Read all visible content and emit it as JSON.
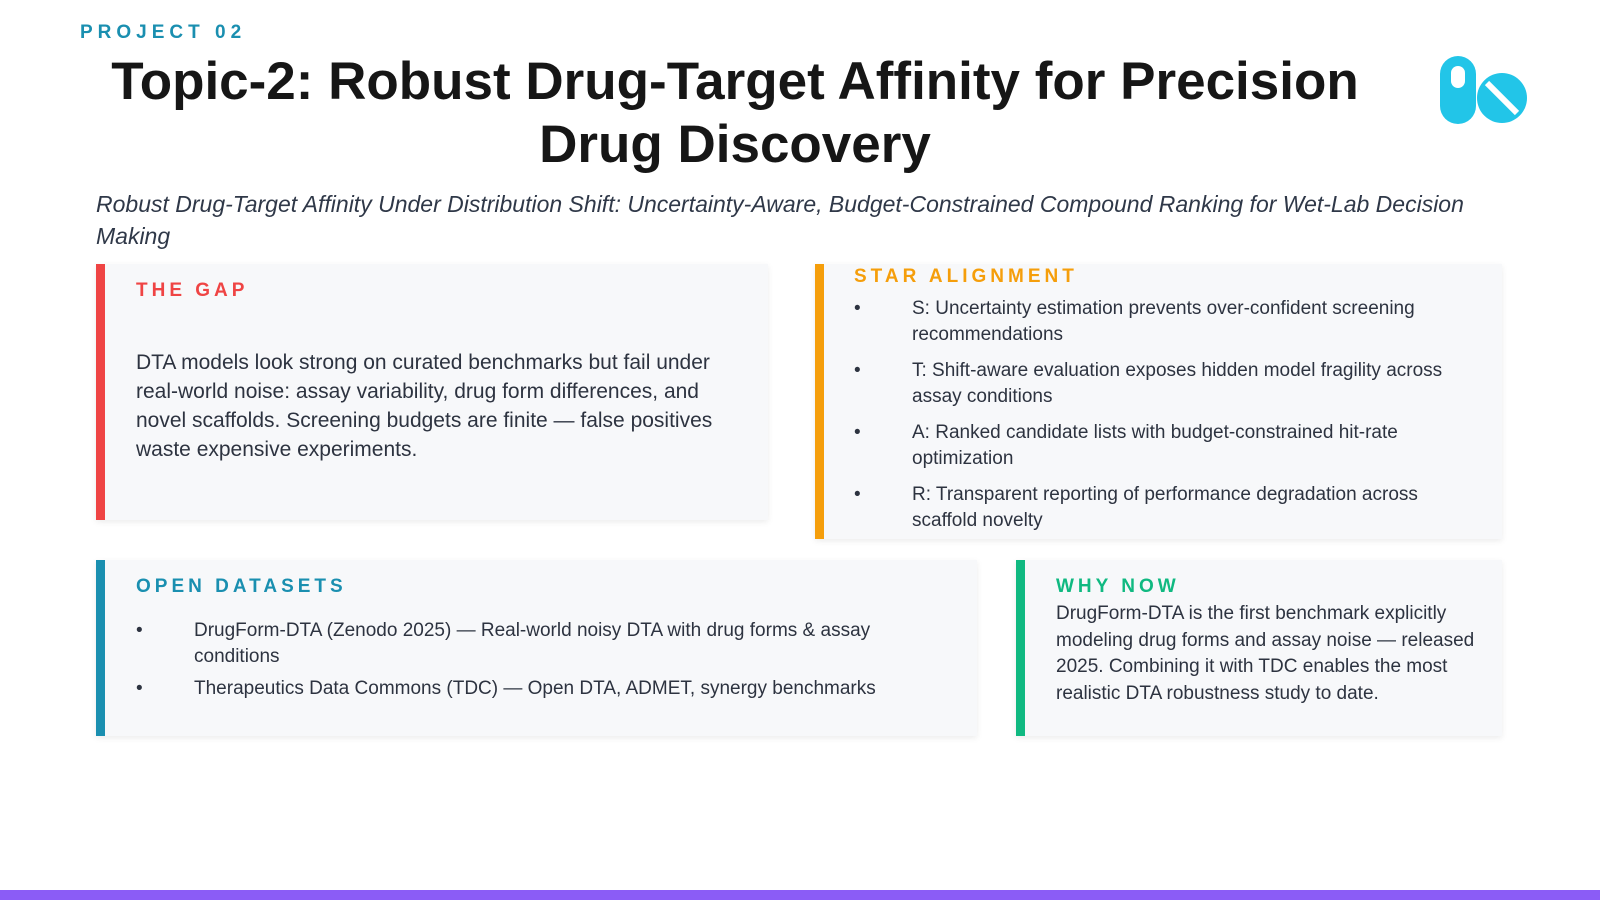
{
  "header": {
    "label": "PROJECT 02",
    "title": "Topic-2: Robust Drug-Target Affinity for Precision Drug Discovery",
    "subtitle": "Robust Drug-Target Affinity Under Distribution Shift: Uncertainty-Aware, Budget-Constrained Compound Ranking for Wet-Lab Decision Making"
  },
  "cards": {
    "gap": {
      "heading": "THE GAP",
      "body": "DTA models look strong on curated benchmarks but fail under real-world noise: assay variability, drug form differences, and novel scaffolds. Screening budgets are finite — false positives waste expensive experiments."
    },
    "star": {
      "heading": "STAR ALIGNMENT",
      "items": [
        "S: Uncertainty estimation prevents over-confident screening recommendations",
        "T: Shift-aware evaluation exposes hidden model fragility across assay conditions",
        "A: Ranked candidate lists with budget-constrained hit-rate optimization",
        "R: Transparent reporting of performance degradation across scaffold novelty"
      ]
    },
    "datasets": {
      "heading": "OPEN DATASETS",
      "items": [
        "DrugForm-DTA (Zenodo 2025) — Real-world noisy DTA with drug forms & assay conditions",
        "Therapeutics Data Commons (TDC) — Open DTA, ADMET, synergy benchmarks"
      ]
    },
    "why_now": {
      "heading": "WHY NOW",
      "body": "DrugForm-DTA is the first benchmark explicitly modeling drug forms and assay noise — released 2025. Combining it with TDC enables the most realistic DTA robustness study to date."
    }
  }
}
